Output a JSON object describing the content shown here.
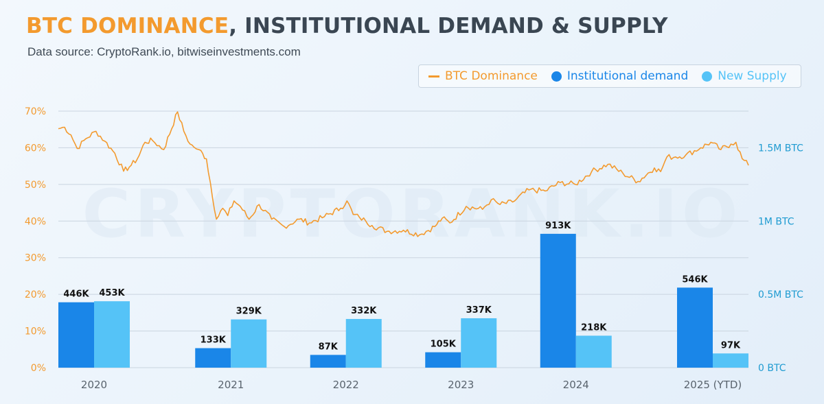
{
  "header": {
    "title_accent": "BTC DOMINANCE",
    "title_rest": ", INSTITUTIONAL DEMAND & SUPPLY",
    "subtitle": "Data source: CryptoRank.io, bitwiseinvestments.com"
  },
  "watermark": "CRYPTORANK.IO",
  "colors": {
    "dominance": "#f39a2e",
    "institutional": "#1a86e8",
    "supply": "#55c3f7",
    "left_axis": "#f39a2e",
    "right_axis": "#1f9bd1",
    "grid": "#c9d4df"
  },
  "chart_data": [
    {
      "type": "bar",
      "categories": [
        "2020",
        "2021",
        "2022",
        "2023",
        "2024",
        "2025 (YTD)"
      ],
      "series": [
        {
          "name": "Institutional demand",
          "values": [
            446,
            133,
            87,
            105,
            913,
            546
          ],
          "labels": [
            "446K",
            "133K",
            "87K",
            "105K",
            "913K",
            "546K"
          ]
        },
        {
          "name": "New Supply",
          "values": [
            453,
            329,
            332,
            337,
            218,
            97
          ],
          "labels": [
            "453K",
            "329K",
            "332K",
            "337K",
            "218K",
            "97K"
          ]
        }
      ],
      "unit": "K BTC",
      "ylim": [
        0,
        1750
      ],
      "right_ticks": [
        "0 BTC",
        "0.5M BTC",
        "1M BTC",
        "1.5M BTC"
      ],
      "right_tick_values": [
        0,
        500,
        1000,
        1500
      ],
      "legend": "top-right"
    },
    {
      "type": "line",
      "name": "BTC Dominance",
      "ylim": [
        0,
        70
      ],
      "left_ticks": [
        "0%",
        "10%",
        "20%",
        "30%",
        "40%",
        "50%",
        "60%",
        "70%"
      ],
      "left_tick_values": [
        0,
        10,
        20,
        30,
        40,
        50,
        60,
        70
      ],
      "x_range": [
        2020.0,
        2025.5
      ],
      "x": [
        2020.0,
        2020.05,
        2020.1,
        2020.15,
        2020.22,
        2020.3,
        2020.37,
        2020.45,
        2020.52,
        2020.58,
        2020.63,
        2020.69,
        2020.75,
        2020.84,
        2020.95,
        2021.0,
        2021.05,
        2021.08,
        2021.12,
        2021.18,
        2021.26,
        2021.31,
        2021.35,
        2021.4,
        2021.45,
        2021.52,
        2021.6,
        2021.7,
        2021.8,
        2021.92,
        2022.0,
        2022.12,
        2022.25,
        2022.3,
        2022.35,
        2022.4,
        2022.45,
        2022.5,
        2022.62,
        2022.75,
        2022.88,
        2023.0,
        2023.06,
        2023.12,
        2023.25,
        2023.38,
        2023.45,
        2023.52,
        2023.62,
        2023.75,
        2023.88,
        2024.0,
        2024.12,
        2024.25,
        2024.38,
        2024.5,
        2024.62,
        2024.75,
        2024.8,
        2024.85,
        2024.92,
        2025.0,
        2025.12,
        2025.2,
        2025.28,
        2025.36,
        2025.4,
        2025.45,
        2025.5
      ],
      "y": [
        65.2,
        65.6,
        63.5,
        59.8,
        62.5,
        64.5,
        61.8,
        58.5,
        53.6,
        55.2,
        57.0,
        61.5,
        62.0,
        59.5,
        69.8,
        64.5,
        61.0,
        60.2,
        59.5,
        57.0,
        40.5,
        43.5,
        41.5,
        45.5,
        44.0,
        40.5,
        44.5,
        40.5,
        38.5,
        40.5,
        39.5,
        41.2,
        43.5,
        45.5,
        41.8,
        41.0,
        40.0,
        38.8,
        37.2,
        37.5,
        36.3,
        38.5,
        40.8,
        39.5,
        44.0,
        43.2,
        45.8,
        44.5,
        45.2,
        48.5,
        48.2,
        50.5,
        50.0,
        53.5,
        55.5,
        53.0,
        50.8,
        54.5,
        53.5,
        57.5,
        57.5,
        58.0,
        60.0,
        61.5,
        59.5,
        61.0,
        61.5,
        57.0,
        55.2
      ]
    }
  ]
}
